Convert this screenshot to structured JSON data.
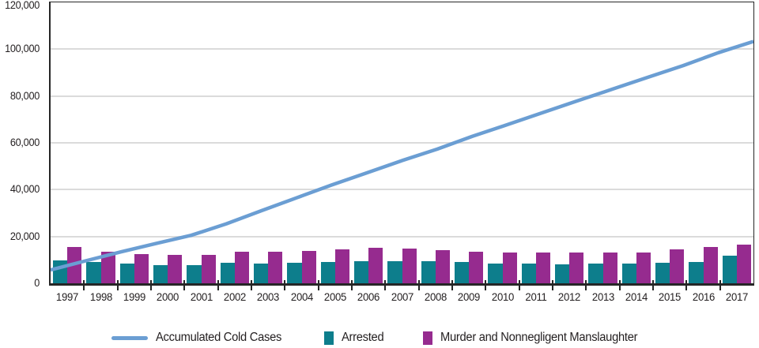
{
  "colors": {
    "background": "#FFFFFF",
    "axis": "#262626",
    "gridline": "#DBDBDB",
    "label": "#231F20",
    "cold_cases_line": "#6B9ED3",
    "arrested_bar": "#0D7E8C",
    "murder_bar": "#962B8F"
  },
  "chart_data": {
    "type": "combo",
    "title": "",
    "xlabel": "",
    "ylabel": "",
    "grid": true,
    "legend_position": "bottom",
    "ylim": [
      0,
      120000
    ],
    "ytick_interval": 20000,
    "ytick_labels": [
      "0",
      "20,000",
      "40,000",
      "60,000",
      "80,000",
      "100,000",
      "120,000"
    ],
    "categories": [
      "1997",
      "1998",
      "1999",
      "2000",
      "2001",
      "2002",
      "2003",
      "2004",
      "2005",
      "2006",
      "2007",
      "2008",
      "2009",
      "2010",
      "2011",
      "2012",
      "2013",
      "2014",
      "2015",
      "2016",
      "2017"
    ],
    "series": [
      {
        "name": "Accumulated Cold Cases",
        "type": "line",
        "color": "#6B9ED3",
        "values": [
          5700,
          9600,
          13400,
          17000,
          20500,
          25400,
          31000,
          36500,
          42000,
          47200,
          52400,
          57300,
          62800,
          67800,
          72900,
          78000,
          83000,
          88000,
          93000,
          98500,
          103300
        ]
      },
      {
        "name": "Arrested",
        "type": "bar",
        "color": "#0D7E8C",
        "values": [
          9800,
          9100,
          8600,
          7900,
          7700,
          8900,
          8400,
          8700,
          9200,
          9600,
          9500,
          9300,
          9000,
          8400,
          8400,
          8100,
          8400,
          8400,
          8700,
          9200,
          11900
        ]
      },
      {
        "name": "Murder and Nonnegligent Manslaughter",
        "type": "bar",
        "color": "#962B8F",
        "values": [
          15400,
          13600,
          12500,
          12300,
          12300,
          13600,
          13500,
          13700,
          14500,
          15100,
          14900,
          14200,
          13500,
          13000,
          13000,
          13300,
          13200,
          13100,
          14400,
          15600,
          16600
        ]
      }
    ]
  }
}
